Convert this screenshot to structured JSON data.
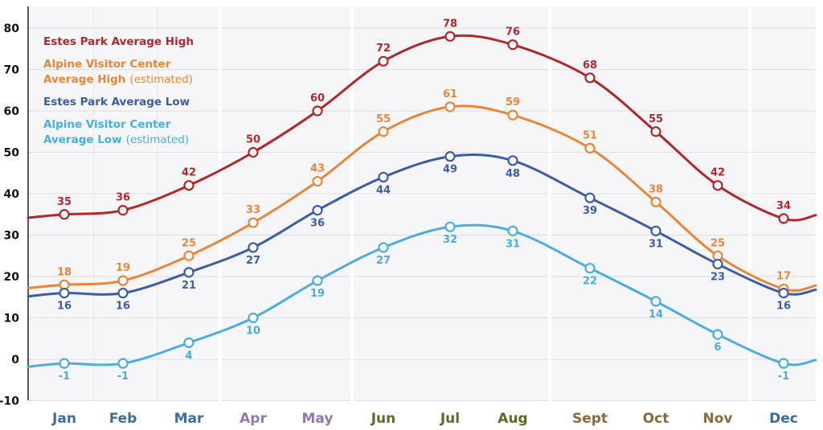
{
  "chart_data": {
    "type": "line",
    "categories": [
      "Jan",
      "Feb",
      "Mar",
      "Apr",
      "May",
      "Jun",
      "Jul",
      "Aug",
      "Sept",
      "Oct",
      "Nov",
      "Dec"
    ],
    "category_colors": [
      "#3b6e9a",
      "#3b6e9a",
      "#3b6e9a",
      "#8e79b0",
      "#8e79b0",
      "#5f6a2a",
      "#5f6a2a",
      "#5f6a2a",
      "#8a6a3a",
      "#8a6a3a",
      "#8a6a3a",
      "#3b6e9a"
    ],
    "ylim": [
      -10,
      80
    ],
    "yticks": [
      -10,
      0,
      10,
      20,
      30,
      40,
      50,
      60,
      70,
      80
    ],
    "grid": "horizontal",
    "legend_position": "top-left",
    "series": [
      {
        "name": "Estes Park Average High",
        "legend_lines": [
          "Estes Park Average High"
        ],
        "legend_note": "",
        "color": "#b0282b",
        "values": [
          35,
          36,
          42,
          50,
          60,
          72,
          78,
          76,
          68,
          55,
          42,
          34
        ],
        "labels": [
          "35",
          "36",
          "42",
          "50",
          "60",
          "72",
          "78",
          "76",
          "68",
          "55",
          "42",
          "34"
        ]
      },
      {
        "name": "Alpine Visitor Center Average High (estimated)",
        "legend_lines": [
          "Alpine Visitor Center",
          "Average High"
        ],
        "legend_note": "(estimated)",
        "color": "#e8863a",
        "values": [
          18,
          19,
          25,
          33,
          43,
          55,
          61,
          59,
          51,
          38,
          25,
          17
        ],
        "labels": [
          "18",
          "19",
          "25",
          "33",
          "43",
          "55",
          "61",
          "59",
          "51",
          "38",
          "25",
          "17"
        ]
      },
      {
        "name": "Estes Park Average Low",
        "legend_lines": [
          "Estes Park Average Low"
        ],
        "legend_note": "",
        "color": "#3d5ea5",
        "values": [
          16,
          16,
          21,
          27,
          36,
          44,
          49,
          48,
          39,
          31,
          23,
          16
        ],
        "labels": [
          "16",
          "16",
          "21",
          "27",
          "36",
          "44",
          "49",
          "48",
          "39",
          "31",
          "23",
          "16"
        ]
      },
      {
        "name": "Alpine Visitor Center Average Low (estimated)",
        "legend_lines": [
          "Alpine Visitor Center",
          "Average Low"
        ],
        "legend_note": "(estimated)",
        "color": "#4aaede",
        "values": [
          -1,
          -1,
          4,
          10,
          19,
          27,
          32,
          31,
          22,
          14,
          6,
          -1
        ],
        "labels": [
          "-1",
          "-1",
          "4",
          "10",
          "19",
          "27",
          "32",
          "31",
          "22",
          "14",
          "6",
          "-1"
        ]
      }
    ]
  }
}
